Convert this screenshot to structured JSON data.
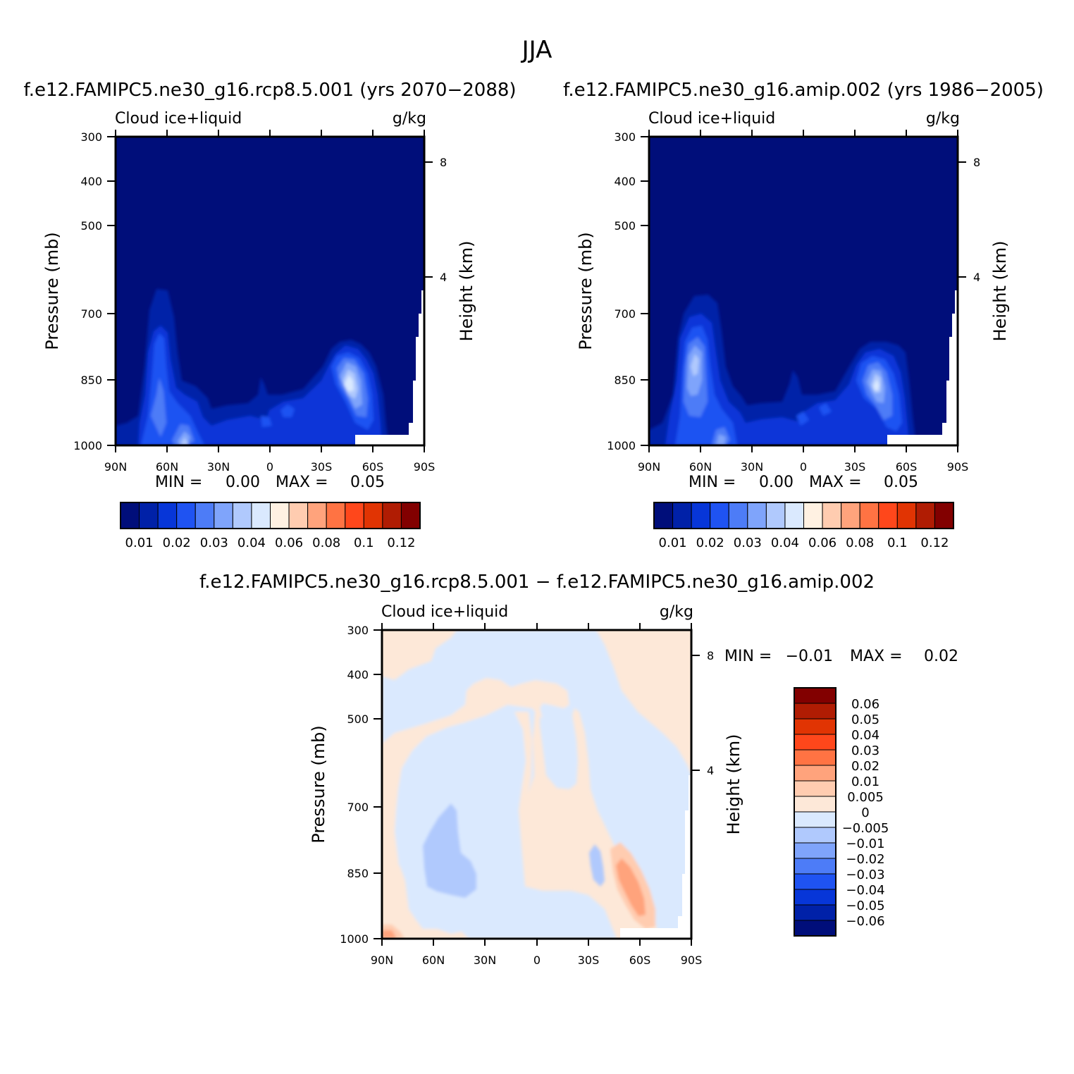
{
  "figure": {
    "title": "JJA",
    "diff_title": "f.e12.FAMIPC5.ne30_g16.rcp8.5.001 - f.e12.FAMIPC5.ne30_g16.amip.002"
  },
  "colors": {
    "abs_levels": [
      "#000e7a",
      "#0021a8",
      "#0736d8",
      "#1f53f2",
      "#4d7cf7",
      "#7fa4fb",
      "#b0c9fd",
      "#dae9fe",
      "#fff1e2",
      "#ffccb0",
      "#ffa37c",
      "#ff7343",
      "#ff471b",
      "#e13403",
      "#b01c03",
      "#820000"
    ],
    "diff_levels": [
      "#000e7a",
      "#0021a8",
      "#0736d8",
      "#1f53f2",
      "#4d7cf7",
      "#7fa4fb",
      "#b0c9fd",
      "#dae9fe",
      "#fde8d8",
      "#ffccb0",
      "#ffa37c",
      "#ff7343",
      "#ff471b",
      "#e13403",
      "#b01c03",
      "#820000"
    ]
  },
  "chart_data": [
    {
      "type": "heatmap",
      "title": "f.e12.FAMIPC5.ne30_g16.rcp8.5.001 (yrs 2070-2088)",
      "left_label": "Cloud ice+liquid",
      "right_label": "g/kg",
      "xlabel": "",
      "ylabel": "Pressure (mb)",
      "y2label": "Height (km)",
      "x_ticks": [
        "90N",
        "60N",
        "30N",
        "0",
        "30S",
        "60S",
        "90S"
      ],
      "y_ticks": [
        "300",
        "400",
        "500",
        "700",
        "850",
        "1000"
      ],
      "y2_ticks": [
        "8",
        "4"
      ],
      "stats": {
        "min_label": "MIN =",
        "min": "0.00",
        "max_label": "MAX =",
        "max": "0.05"
      },
      "colorbar_labels": [
        "0.01",
        "0.02",
        "0.03",
        "0.04",
        "0.06",
        "0.08",
        "0.1",
        "0.12"
      ],
      "lobes": [
        {
          "lat": 63,
          "p": 790,
          "level": 3
        },
        {
          "lat": 45,
          "p": 990,
          "level": 6
        },
        {
          "lat": -48,
          "p": 840,
          "level": 7
        },
        {
          "lat": 10,
          "p": 920,
          "level": 1
        }
      ]
    },
    {
      "type": "heatmap",
      "title": "f.e12.FAMIPC5.ne30_g16.amip.002 (yrs 1986-2005)",
      "left_label": "Cloud ice+liquid",
      "right_label": "g/kg",
      "xlabel": "",
      "ylabel": "Pressure (mb)",
      "y2label": "Height (km)",
      "x_ticks": [
        "90N",
        "60N",
        "30N",
        "0",
        "30S",
        "60S",
        "90S"
      ],
      "y_ticks": [
        "300",
        "400",
        "500",
        "700",
        "850",
        "1000"
      ],
      "y2_ticks": [
        "8",
        "4"
      ],
      "stats": {
        "min_label": "MIN =",
        "min": "0.00",
        "max_label": "MAX =",
        "max": "0.05"
      },
      "colorbar_labels": [
        "0.01",
        "0.02",
        "0.03",
        "0.04",
        "0.06",
        "0.08",
        "0.1",
        "0.12"
      ],
      "lobes": [
        {
          "lat": 63,
          "p": 810,
          "level": 4
        },
        {
          "lat": 44,
          "p": 985,
          "level": 6
        },
        {
          "lat": -42,
          "p": 840,
          "level": 6
        },
        {
          "lat": 10,
          "p": 920,
          "level": 1
        }
      ]
    },
    {
      "type": "heatmap",
      "title": "",
      "left_label": "Cloud ice+liquid",
      "right_label": "g/kg",
      "xlabel": "",
      "ylabel": "Pressure (mb)",
      "y2label": "Height (km)",
      "x_ticks": [
        "90N",
        "60N",
        "30N",
        "0",
        "30S",
        "60S",
        "90S"
      ],
      "y_ticks": [
        "300",
        "400",
        "500",
        "700",
        "850",
        "1000"
      ],
      "y2_ticks": [
        "8",
        "4"
      ],
      "stats": {
        "min_label": "MIN =",
        "min": "-0.01",
        "max_label": "MAX =",
        "max": "0.02"
      },
      "colorbar_labels": [
        "0.06",
        "0.05",
        "0.04",
        "0.03",
        "0.02",
        "0.01",
        "0.005",
        "0",
        "-0.005",
        "-0.01",
        "-0.02",
        "-0.03",
        "-0.04",
        "-0.05",
        "-0.06"
      ],
      "negative_blobs": [
        {
          "lat": 50,
          "p": 810,
          "level": 6
        },
        {
          "lat": -35,
          "p": 840,
          "level": 6
        }
      ],
      "positive_blobs": [
        {
          "lat": -55,
          "p": 870,
          "level": 10
        },
        {
          "lat": -60,
          "p": 905,
          "level": 11
        },
        {
          "lat": 87,
          "p": 995,
          "level": 10
        }
      ]
    }
  ]
}
